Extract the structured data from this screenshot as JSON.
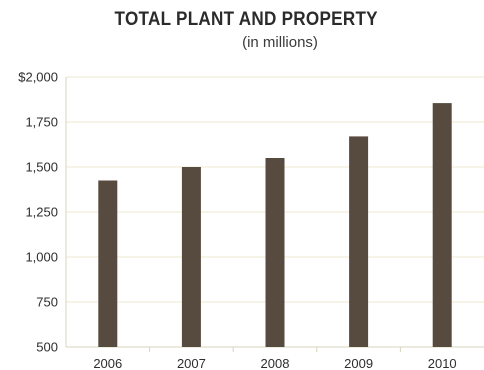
{
  "chart_data": {
    "type": "bar",
    "title": "TOTAL PLANT AND PROPERTY",
    "subtitle": "(in millions)",
    "xlabel": "",
    "ylabel": "",
    "categories": [
      "2006",
      "2007",
      "2008",
      "2009",
      "2010"
    ],
    "values": [
      1425,
      1500,
      1550,
      1670,
      1855
    ],
    "ylim": [
      500,
      2000
    ],
    "yticks": [
      500,
      750,
      1000,
      1250,
      1500,
      1750,
      2000
    ],
    "ytick_labels": [
      "500",
      "750",
      "1,000",
      "1,250",
      "1,500",
      "1,750",
      "$2,000"
    ],
    "grid": true,
    "colors": {
      "bar": "#574a3e",
      "grid": "#ece7cf",
      "axis": "#d9d4bf"
    }
  }
}
